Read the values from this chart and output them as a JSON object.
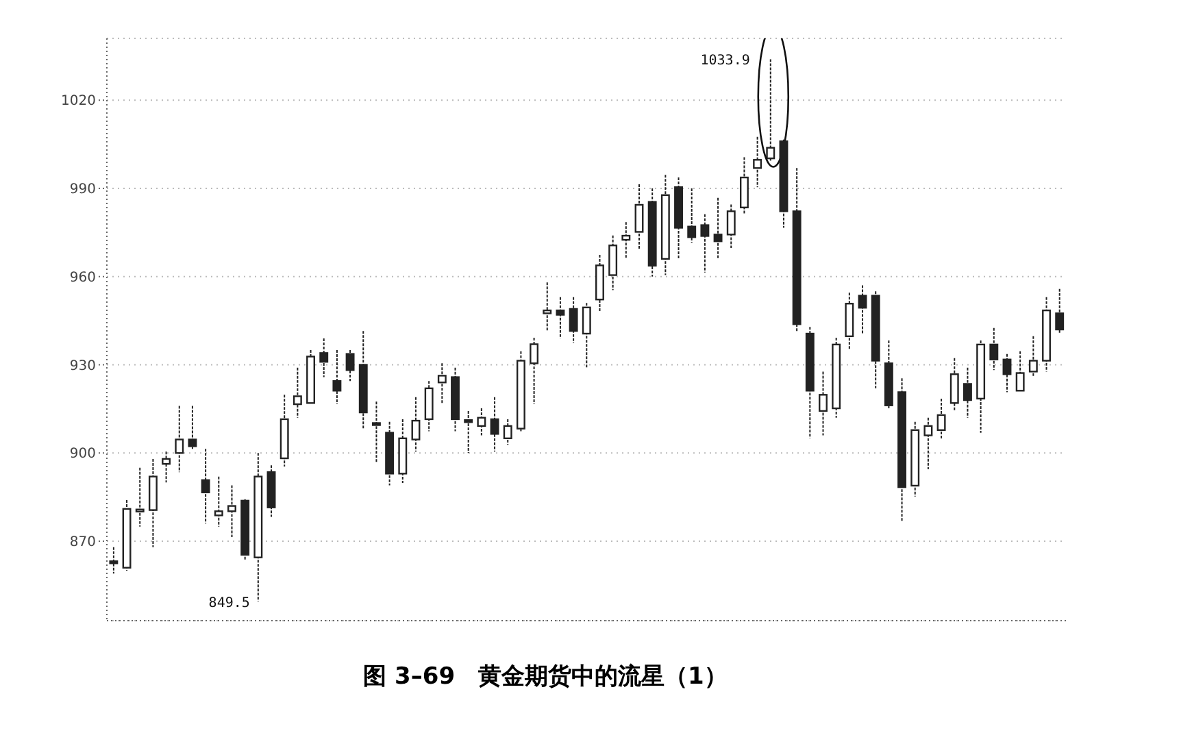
{
  "chart_data": {
    "type": "candlestick",
    "title": "图 3–69　黄金期货中的流星（1）",
    "color": "#222222",
    "grid": "y",
    "categories": [
      null,
      null,
      null,
      null,
      null,
      null,
      null,
      null,
      null,
      null,
      null,
      null,
      null,
      null,
      null,
      null,
      null,
      null,
      null,
      null,
      null,
      null,
      null,
      null,
      null,
      null,
      null,
      null,
      null,
      null,
      null,
      null,
      null,
      null,
      null,
      null,
      null,
      null,
      null,
      null,
      null,
      null,
      null,
      null,
      null,
      null,
      null,
      null,
      null,
      null,
      null,
      null,
      null,
      null,
      null,
      null,
      null,
      null,
      null,
      null,
      null,
      null,
      null,
      null,
      null,
      null,
      null,
      null,
      null,
      null,
      null,
      null,
      null
    ],
    "ylim": [
      843,
      1041
    ],
    "yticks": [
      870,
      900,
      930,
      960,
      990,
      1020
    ],
    "annotations": [
      "1033.9",
      "849.5"
    ],
    "ohlc": [
      [
        863.2,
        868,
        859,
        863
      ],
      [
        861,
        884,
        860,
        881
      ],
      [
        880.4,
        895,
        875,
        880.8
      ],
      [
        880.6,
        898,
        868,
        892
      ],
      [
        896.3,
        900.5,
        890,
        898
      ],
      [
        900,
        916,
        893.5,
        904.6
      ],
      [
        904.6,
        916,
        901.4,
        902.3
      ],
      [
        890.8,
        901.4,
        876,
        886.6
      ],
      [
        878.8,
        892,
        875,
        880.2
      ],
      [
        880.2,
        889,
        871.4,
        882
      ],
      [
        883.8,
        884.3,
        863.5,
        865.4
      ],
      [
        864.5,
        900,
        849.5,
        892
      ],
      [
        893.5,
        895.8,
        878.3,
        881.5
      ],
      [
        898.2,
        919.8,
        895.4,
        911.5
      ],
      [
        916.6,
        929,
        912,
        919.3
      ],
      [
        917,
        935,
        917,
        932.8
      ],
      [
        934,
        939,
        925.8,
        931
      ],
      [
        924.5,
        935,
        916.6,
        921.2
      ],
      [
        933.7,
        935,
        924.5,
        928.2
      ],
      [
        930,
        941.5,
        908.3,
        913.8
      ],
      [
        910.2,
        917.5,
        896.8,
        909.8
      ],
      [
        906.9,
        910.6,
        889,
        893
      ],
      [
        893,
        911.5,
        889.8,
        905
      ],
      [
        904.6,
        919,
        900.5,
        911
      ],
      [
        911.5,
        924.5,
        907.4,
        922
      ],
      [
        924,
        930.5,
        916.6,
        926.3
      ],
      [
        925.8,
        929,
        907.4,
        911.5
      ],
      [
        911.2,
        914.3,
        900,
        910.8
      ],
      [
        909.2,
        915.2,
        906,
        912
      ],
      [
        911.5,
        919,
        900.5,
        906.5
      ],
      [
        905,
        911.5,
        902.8,
        909.2
      ],
      [
        908.3,
        934.6,
        907.4,
        931.4
      ],
      [
        930.5,
        939.2,
        916.6,
        937
      ],
      [
        947.5,
        958,
        941.5,
        948.5
      ],
      [
        948.5,
        953,
        939,
        947
      ],
      [
        949,
        953,
        937.4,
        941.5
      ],
      [
        940.6,
        951,
        929,
        949.5
      ],
      [
        952.2,
        967.4,
        948,
        963.8
      ],
      [
        960.5,
        974,
        955.4,
        970.6
      ],
      [
        972.5,
        978.5,
        966,
        973.9
      ],
      [
        975.2,
        991.4,
        969.2,
        984.4
      ],
      [
        985.4,
        990,
        960,
        963.7
      ],
      [
        966,
        994.6,
        960.5,
        987.7
      ],
      [
        990.4,
        993.7,
        966,
        976.6
      ],
      [
        977,
        990,
        971.5,
        973.4
      ],
      [
        977.5,
        981.2,
        961.4,
        973.8
      ],
      [
        974.3,
        986.8,
        966,
        972
      ],
      [
        974.3,
        984.5,
        969.7,
        982.2
      ],
      [
        983.5,
        1000.6,
        981.2,
        993.7
      ],
      [
        996.9,
        1007.5,
        990.4,
        999.7
      ],
      [
        1000.2,
        1033.9,
        999.2,
        1003.8
      ],
      [
        1006,
        1006.6,
        976.6,
        982.2
      ],
      [
        982.2,
        996.9,
        941.5,
        943.8
      ],
      [
        940.6,
        942.9,
        905,
        921.2
      ],
      [
        914.3,
        927.7,
        906,
        919.8
      ],
      [
        915.2,
        939.2,
        912,
        936.9
      ],
      [
        939.7,
        954.5,
        935,
        950.8
      ],
      [
        953.5,
        957,
        940.6,
        949.4
      ],
      [
        953.5,
        955,
        922,
        931.4
      ],
      [
        930.5,
        938.3,
        915.2,
        916.2
      ],
      [
        920.7,
        925.4,
        876.9,
        888.4
      ],
      [
        888.9,
        910.6,
        885.2,
        907.8
      ],
      [
        906,
        912,
        894.5,
        909.2
      ],
      [
        907.8,
        918.5,
        904.6,
        912.9
      ],
      [
        917,
        932.3,
        914.3,
        926.8
      ],
      [
        923.5,
        929,
        912,
        918
      ],
      [
        918.5,
        938.3,
        906.9,
        936.9
      ],
      [
        936.9,
        942.5,
        928.2,
        931.8
      ],
      [
        931.8,
        933.7,
        920.7,
        926.8
      ],
      [
        921.2,
        934.6,
        920.7,
        927.2
      ],
      [
        927.7,
        939.7,
        925.8,
        931.4
      ],
      [
        931.4,
        953,
        927.7,
        948.5
      ],
      [
        947.5,
        955.8,
        940.6,
        942
      ]
    ]
  }
}
